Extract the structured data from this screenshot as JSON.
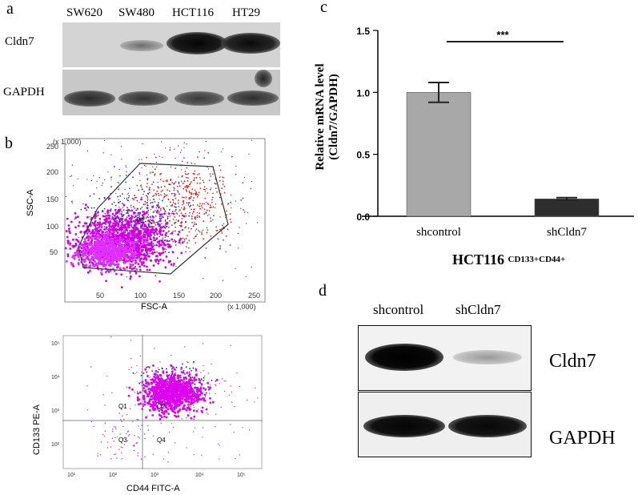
{
  "panel_a": {
    "letter": "a",
    "lanes": [
      "SW620",
      "SW480",
      "HCT116",
      "HT29"
    ],
    "rows": [
      "Cldn7",
      "GAPDH"
    ]
  },
  "panel_b": {
    "letter": "b",
    "top_plot": {
      "y_axis_title": "SSC-A",
      "x_axis_title": "FSC-A",
      "y_multiplier": "(x 1,000)",
      "x_multiplier": "(x 1,000)",
      "y_ticks": [
        "50",
        "100",
        "150",
        "200",
        "250"
      ],
      "x_ticks": [
        "50",
        "100",
        "150",
        "200",
        "250"
      ],
      "gate_label": "P1"
    },
    "bottom_plot": {
      "y_axis_title": "CD133 PE-A",
      "x_axis_title": "CD44 FITC-A",
      "y_ticks": [
        "10²",
        "10³",
        "10⁴",
        "10⁵"
      ],
      "x_ticks": [
        "10¹",
        "10²",
        "10³",
        "10⁴",
        "10⁵"
      ],
      "quadrants": [
        "Q1",
        "Q2",
        "Q3",
        "Q4"
      ]
    }
  },
  "panel_c": {
    "letter": "c",
    "ylabel_line1": "Relative mRNA level",
    "ylabel_line2": "(Cldn7/GAPDH)",
    "significance": "***",
    "xlabel_main": "HCT116",
    "xlabel_sup": "CD133+CD44+"
  },
  "panel_d": {
    "letter": "d",
    "lanes": [
      "shcontrol",
      "shCldn7"
    ],
    "rows": [
      "Cldn7",
      "GAPDH"
    ]
  },
  "chart_data": {
    "type": "bar",
    "categories": [
      "shcontrol",
      "shCldn7"
    ],
    "values": [
      1.0,
      0.14
    ],
    "errors": [
      0.08,
      0.01
    ],
    "colors": [
      "#a8a8a8",
      "#2e2e2e"
    ],
    "ylim": [
      0,
      1.5
    ],
    "y_ticks": [
      "0.0",
      "0.5",
      "1.0",
      "1.5"
    ],
    "ylabel": "Relative mRNA level (Cldn7/GAPDH)",
    "annotation": "***",
    "grid": false
  }
}
